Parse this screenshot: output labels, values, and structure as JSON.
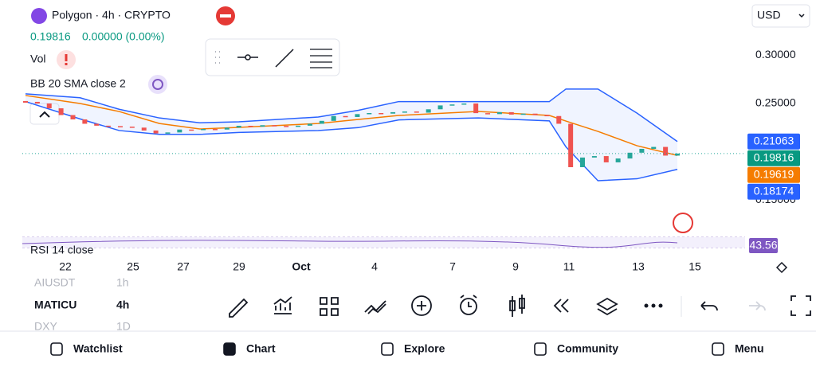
{
  "header": {
    "symbol": "Polygon · 4h · CRYPTO",
    "price": "0.19816",
    "change": "0.00000 (0.00%)",
    "volume_label": "Vol",
    "bb_label": "BB 20 SMA close 2",
    "currency": "USD",
    "rsi_label": "RSI 14 close",
    "rsi_value": "43.56"
  },
  "chart_data": {
    "type": "candlestick",
    "closes": [
      0.2517,
      0.25,
      0.245,
      0.238,
      0.2335,
      0.229,
      0.227,
      0.2265,
      0.226,
      0.225,
      0.222,
      0.219,
      0.22,
      0.223,
      0.2225,
      0.2236,
      0.223,
      0.225,
      0.2269,
      0.226,
      0.2275,
      0.2268,
      0.2262,
      0.227,
      0.229,
      0.232,
      0.237,
      0.236,
      0.239,
      0.2401,
      0.2395,
      0.241,
      0.2417,
      0.2405,
      0.244,
      0.248,
      0.249,
      0.25,
      0.24,
      0.239,
      0.241,
      0.2385,
      0.2395,
      0.238,
      0.237,
      0.229,
      0.184,
      0.194,
      0.1955,
      0.189,
      0.193,
      0.199,
      0.203,
      0.205,
      0.196,
      0.19816
    ],
    "bands": {
      "x": [
        0,
        4.6,
        7.9,
        11.3,
        14.7,
        18,
        24.7,
        28.1,
        31.5,
        38.2,
        44.2,
        45.6,
        48.3,
        51.6,
        55
      ],
      "upper": [
        0.26,
        0.256,
        0.244,
        0.235,
        0.23,
        0.231,
        0.236,
        0.243,
        0.252,
        0.252,
        0.252,
        0.265,
        0.265,
        0.24,
        0.21063
      ],
      "middle": [
        0.2583,
        0.25,
        0.2417,
        0.2293,
        0.2236,
        0.2252,
        0.2293,
        0.2335,
        0.2376,
        0.2417,
        0.2376,
        0.2318,
        0.2211,
        0.2062,
        0.19619
      ],
      "lower": [
        0.252,
        0.234,
        0.222,
        0.218,
        0.218,
        0.22,
        0.222,
        0.225,
        0.233,
        0.235,
        0.232,
        0.205,
        0.17,
        0.172,
        0.18174
      ]
    },
    "ylim": [
      0.118,
      0.349
    ],
    "yticks": [
      {
        "value": 0.3,
        "label": "0.30000"
      },
      {
        "value": 0.25,
        "label": "0.25000"
      },
      {
        "value": 0.15,
        "label": "0.15000"
      }
    ],
    "x_labels": [
      "22",
      "25",
      "27",
      "29",
      "Oct",
      "4",
      "7",
      "9",
      "11",
      "13",
      "15"
    ],
    "price_tags": [
      {
        "value": 0.21063,
        "label": "0.21063",
        "color": "#2962ff"
      },
      {
        "value": 0.19816,
        "label": "0.19816",
        "color": "#089981"
      },
      {
        "value": 0.19619,
        "label": "0.19619",
        "color": "#f57c00"
      },
      {
        "value": 0.18174,
        "label": "0.18174",
        "color": "#2962ff"
      }
    ],
    "up_color": "#26a69a",
    "down_color": "#ef5350",
    "band_color": "#2962ff",
    "middle_color": "#f57c00"
  },
  "symbol_picker": [
    [
      "AIUSDT",
      "1h"
    ],
    [
      "MATICU",
      "4h"
    ],
    [
      "DXY",
      "1D"
    ]
  ],
  "nav": [
    "Watchlist",
    "Chart",
    "Explore",
    "Community",
    "Menu"
  ]
}
